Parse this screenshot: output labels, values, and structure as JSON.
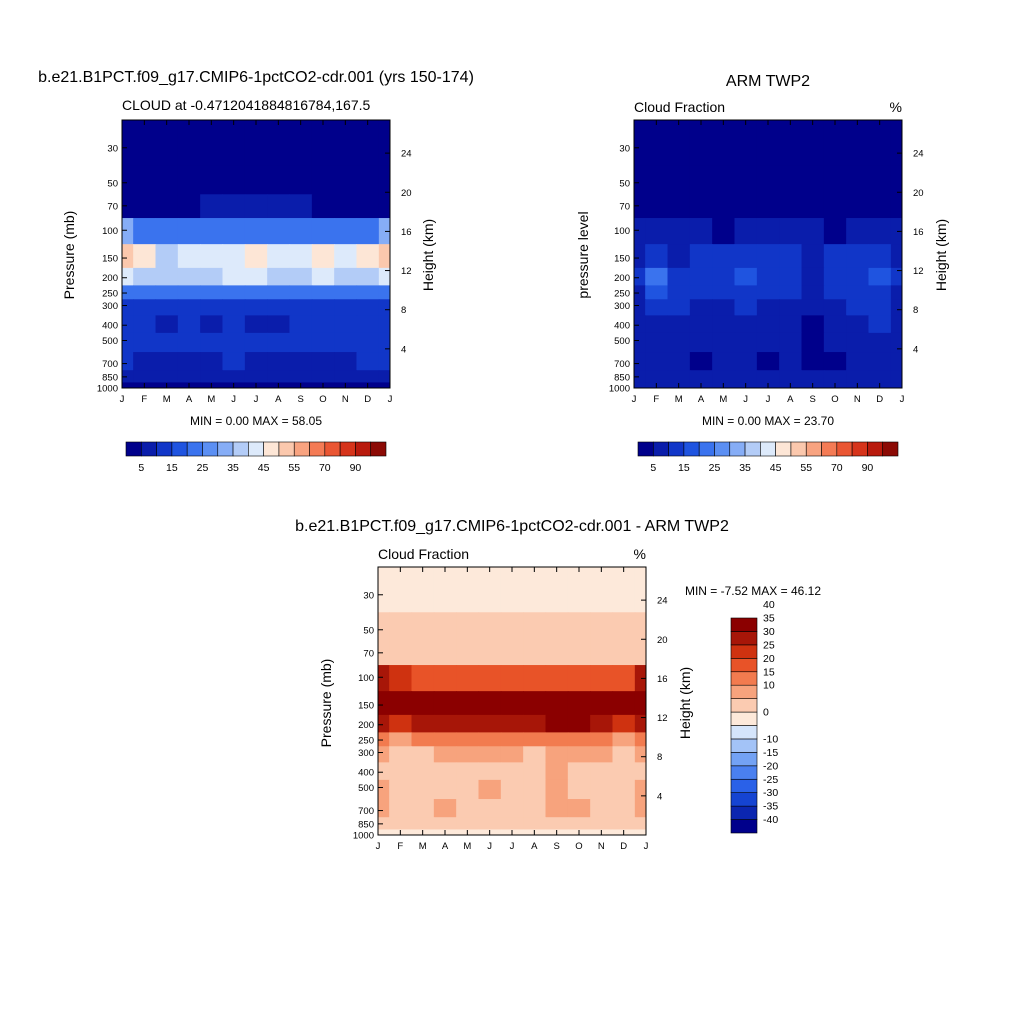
{
  "colors": {
    "abs_palette": [
      "#00008b",
      "#0a1dab",
      "#1136c8",
      "#1f54e0",
      "#3a73ee",
      "#5b8ff3",
      "#86adf6",
      "#b3ccf7",
      "#ddeafb",
      "#fde6d6",
      "#fbc8ad",
      "#f8a380",
      "#f47b55",
      "#ea5633",
      "#d6341b",
      "#b91a0d",
      "#8c0a05"
    ],
    "diff_palette": [
      "#00008b",
      "#0b26b0",
      "#1544d2",
      "#2a61e8",
      "#4a80f0",
      "#73a2f4",
      "#a3c3f7",
      "#d5e5fb",
      "#fde9da",
      "#fbcbb1",
      "#f7a37d",
      "#f27b4f",
      "#e85328",
      "#cf3210",
      "#a71608",
      "#8b0000"
    ]
  },
  "panels": [
    {
      "id": "model",
      "title": "b.e21.B1PCT.f09_g17.CMIP6-1pctCO2-cdr.001 (yrs 150-174)",
      "left_label": "CLOUD at -0.47120418848167​84,167.5",
      "right_label": "",
      "ylabel_left": "Pressure (mb)",
      "ylabel_right": "Height (km)",
      "minmax": "MIN =   0.00 MAX =  58.05",
      "palette": "abs"
    },
    {
      "id": "obs",
      "title": "ARM TWP2",
      "left_label": "Cloud Fraction",
      "right_label": "%",
      "ylabel_left": "pressure level",
      "ylabel_right": "Height (km)",
      "minmax": "MIN =   0.00 MAX =  23.70",
      "palette": "abs"
    },
    {
      "id": "diff",
      "title": "b.e21.B1PCT.f09_g17.CMIP6-1pctCO2-cdr.001 - ARM TWP2",
      "left_label": "Cloud Fraction",
      "right_label": "%",
      "ylabel_left": "Pressure (mb)",
      "ylabel_right": "Height (km)",
      "minmax": "MIN =  -7.52 MAX =  46.12",
      "palette": "diff"
    }
  ],
  "chart_data": [
    {
      "type": "heatmap",
      "title": "b.e21.B1PCT.f09_g17.CMIP6-1pctCO2-cdr.001 (yrs 150-174)",
      "xlabel": "",
      "ylabel": "Pressure (mb)",
      "y2label": "Height (km)",
      "x_ticks": [
        "J",
        "F",
        "M",
        "A",
        "M",
        "J",
        "J",
        "A",
        "S",
        "O",
        "N",
        "D",
        "J"
      ],
      "y_ticks": [
        30,
        50,
        70,
        100,
        150,
        200,
        250,
        300,
        400,
        500,
        700,
        850,
        1000
      ],
      "y2_ticks": [
        4,
        8,
        12,
        16,
        20,
        24
      ],
      "colorbar_levels": [
        5,
        10,
        15,
        20,
        25,
        30,
        35,
        40,
        45,
        50,
        55,
        60,
        65,
        70,
        80,
        90
      ],
      "colorbar_labels": [
        "5",
        "15",
        "25",
        "35",
        "45",
        "55",
        "70",
        "90"
      ],
      "min": 0.0,
      "max": 58.05,
      "levels": [
        30,
        50,
        70,
        100,
        150,
        200,
        250,
        300,
        400,
        500,
        700,
        850,
        1000
      ],
      "values": [
        [
          0,
          0,
          0,
          0,
          0,
          0,
          0,
          0,
          0,
          0,
          0,
          0,
          0
        ],
        [
          1,
          1,
          1,
          1,
          1,
          1,
          1,
          1,
          1,
          1,
          1,
          1,
          1
        ],
        [
          3,
          3,
          4,
          4,
          5,
          5,
          5,
          5,
          5,
          4,
          4,
          3,
          3
        ],
        [
          30,
          24,
          20,
          20,
          20,
          21,
          20,
          20,
          20,
          20,
          20,
          24,
          30
        ],
        [
          52,
          48,
          38,
          42,
          42,
          44,
          45,
          42,
          44,
          46,
          40,
          48,
          52
        ],
        [
          40,
          38,
          36,
          37,
          38,
          40,
          40,
          37,
          38,
          40,
          38,
          38,
          40
        ],
        [
          22,
          20,
          20,
          20,
          20,
          21,
          21,
          20,
          20,
          20,
          20,
          20,
          22
        ],
        [
          14,
          13,
          12,
          13,
          13,
          14,
          13,
          12,
          13,
          13,
          13,
          13,
          14
        ],
        [
          12,
          10,
          9,
          10,
          9,
          13,
          9,
          9,
          10,
          10,
          10,
          11,
          12
        ],
        [
          13,
          11,
          10,
          10,
          10,
          12,
          10,
          10,
          10,
          10,
          10,
          11,
          13
        ],
        [
          11,
          9,
          8,
          9,
          9,
          10,
          8,
          8,
          9,
          9,
          9,
          10,
          11
        ],
        [
          9,
          8,
          8,
          8,
          8,
          9,
          8,
          8,
          8,
          8,
          8,
          8,
          9
        ],
        [
          3,
          3,
          3,
          3,
          3,
          3,
          3,
          3,
          3,
          3,
          3,
          3,
          3
        ]
      ]
    },
    {
      "type": "heatmap",
      "title": "ARM TWP2",
      "xlabel": "",
      "ylabel": "pressure level",
      "y2label": "Height (km)",
      "x_ticks": [
        "J",
        "F",
        "M",
        "A",
        "M",
        "J",
        "J",
        "A",
        "S",
        "O",
        "N",
        "D",
        "J"
      ],
      "y_ticks": [
        30,
        50,
        70,
        100,
        150,
        200,
        250,
        300,
        400,
        500,
        700,
        850,
        1000
      ],
      "y2_ticks": [
        4,
        8,
        12,
        16,
        20,
        24
      ],
      "colorbar_levels": [
        5,
        10,
        15,
        20,
        25,
        30,
        35,
        40,
        45,
        50,
        55,
        60,
        65,
        70,
        80,
        90
      ],
      "colorbar_labels": [
        "5",
        "15",
        "25",
        "35",
        "45",
        "55",
        "70",
        "90"
      ],
      "min": 0.0,
      "max": 23.7,
      "levels": [
        30,
        50,
        70,
        100,
        150,
        200,
        250,
        300,
        400,
        500,
        700,
        850,
        1000
      ],
      "values": [
        [
          0,
          0,
          0,
          0,
          0,
          0,
          0,
          0,
          0,
          0,
          0,
          0,
          0
        ],
        [
          0,
          0,
          0,
          0,
          0,
          0,
          0,
          0,
          0,
          0,
          0,
          0,
          0
        ],
        [
          1,
          1,
          1,
          1,
          1,
          1,
          1,
          1,
          1,
          1,
          1,
          1,
          1
        ],
        [
          5,
          6,
          6,
          6,
          4,
          6,
          6,
          6,
          5,
          4,
          6,
          6,
          5
        ],
        [
          8,
          12,
          9,
          12,
          11,
          10,
          12,
          10,
          9,
          11,
          12,
          10,
          8
        ],
        [
          11,
          21,
          12,
          11,
          10,
          18,
          12,
          13,
          9,
          11,
          13,
          18,
          11
        ],
        [
          9,
          16,
          11,
          10,
          10,
          12,
          10,
          10,
          9,
          10,
          11,
          12,
          9
        ],
        [
          9,
          11,
          10,
          9,
          9,
          10,
          9,
          9,
          7,
          9,
          10,
          10,
          9
        ],
        [
          9,
          9,
          8,
          7,
          8,
          9,
          7,
          7,
          4,
          8,
          9,
          10,
          9
        ],
        [
          7,
          8,
          8,
          7,
          7,
          7,
          7,
          7,
          4,
          6,
          7,
          9,
          7
        ],
        [
          6,
          8,
          7,
          4,
          7,
          6,
          4,
          6,
          4,
          4,
          7,
          8,
          6
        ],
        [
          7,
          8,
          7,
          7,
          7,
          7,
          7,
          7,
          5,
          5,
          7,
          8,
          7
        ],
        [
          9,
          9,
          9,
          9,
          9,
          9,
          9,
          9,
          9,
          9,
          9,
          9,
          9
        ]
      ]
    },
    {
      "type": "heatmap",
      "title": "b.e21.B1PCT.f09_g17.CMIP6-1pctCO2-cdr.001 - ARM TWP2",
      "xlabel": "",
      "ylabel": "Pressure (mb)",
      "y2label": "Height (km)",
      "x_ticks": [
        "J",
        "F",
        "M",
        "A",
        "M",
        "J",
        "J",
        "A",
        "S",
        "O",
        "N",
        "D",
        "J"
      ],
      "y_ticks": [
        30,
        50,
        70,
        100,
        150,
        200,
        250,
        300,
        400,
        500,
        700,
        850,
        1000
      ],
      "y2_ticks": [
        4,
        8,
        12,
        16,
        20,
        24
      ],
      "colorbar_levels": [
        -40,
        -35,
        -30,
        -25,
        -20,
        -15,
        -10,
        -5,
        0,
        5,
        10,
        15,
        20,
        25,
        30,
        35,
        40
      ],
      "colorbar_labels": [
        "-40",
        "-35",
        "-30",
        "-25",
        "-20",
        "-15",
        "-10",
        "0",
        "10",
        "15",
        "20",
        "25",
        "30",
        "35",
        "40"
      ],
      "min": -7.52,
      "max": 46.12,
      "levels": [
        30,
        50,
        70,
        100,
        150,
        200,
        250,
        300,
        400,
        500,
        700,
        850,
        1000
      ],
      "values": [
        [
          -2,
          -2,
          -2,
          -2,
          -2,
          -2,
          -2,
          -2,
          -2,
          -2,
          -2,
          -2,
          -2
        ],
        [
          1,
          1,
          1,
          1,
          1,
          1,
          1,
          1,
          1,
          1,
          1,
          1,
          1
        ],
        [
          3,
          3,
          3,
          3,
          4,
          4,
          4,
          4,
          4,
          3,
          3,
          3,
          3
        ],
        [
          25,
          20,
          16,
          16,
          16,
          17,
          16,
          16,
          16,
          16,
          16,
          19,
          25
        ],
        [
          44,
          42,
          30,
          32,
          32,
          36,
          33,
          32,
          36,
          35,
          30,
          40,
          44
        ],
        [
          29,
          20,
          25,
          26,
          28,
          26,
          28,
          25,
          30,
          31,
          26,
          22,
          29
        ],
        [
          13,
          8,
          10,
          11,
          10,
          12,
          12,
          12,
          12,
          10,
          10,
          9,
          13
        ],
        [
          5,
          3,
          3,
          5,
          5,
          5,
          5,
          4,
          5,
          5,
          5,
          4,
          5
        ],
        [
          3,
          1,
          1,
          2,
          2,
          4,
          2,
          2,
          6,
          3,
          2,
          3,
          3
        ],
        [
          5,
          3,
          2,
          3,
          3,
          5,
          3,
          3,
          6,
          4,
          3,
          3,
          5
        ],
        [
          5,
          2,
          1,
          5,
          2,
          4,
          4,
          2,
          5,
          5,
          2,
          3,
          5
        ],
        [
          2,
          0,
          1,
          1,
          1,
          2,
          1,
          1,
          3,
          3,
          1,
          1,
          2
        ],
        [
          -4,
          -4,
          -4,
          -4,
          -4,
          -4,
          -4,
          -4,
          -4,
          -4,
          -4,
          -4,
          -4
        ]
      ]
    }
  ]
}
